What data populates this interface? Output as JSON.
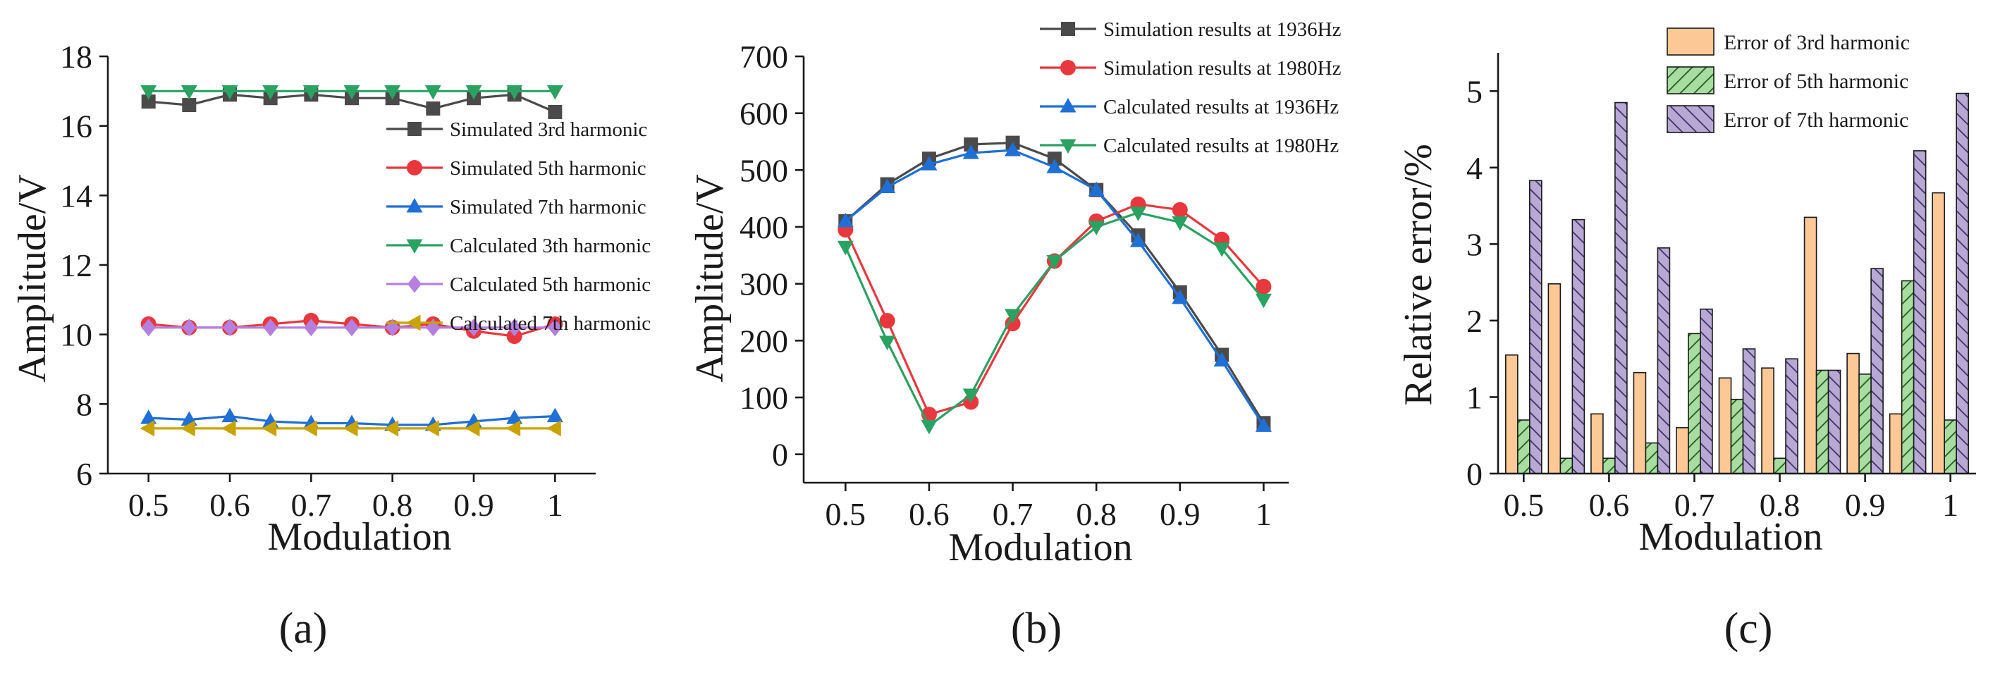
{
  "chart_data": [
    {
      "panel_label": "(a)",
      "type": "line",
      "xlabel": "Modulation",
      "ylabel": "Amplitude/V",
      "xlim": [
        0.45,
        1.05
      ],
      "ylim": [
        6,
        18
      ],
      "xticks": [
        0.5,
        0.6,
        0.7,
        0.8,
        0.9,
        1.0
      ],
      "xtick_labels": [
        "0.5",
        "0.6",
        "0.7",
        "0.8",
        "0.9",
        "1"
      ],
      "yticks": [
        6,
        8,
        10,
        12,
        14,
        16,
        18
      ],
      "ytick_labels": [
        "6",
        "8",
        "10",
        "12",
        "14",
        "16",
        "18"
      ],
      "x": [
        0.5,
        0.55,
        0.6,
        0.65,
        0.7,
        0.75,
        0.8,
        0.85,
        0.9,
        0.95,
        1.0
      ],
      "legend_position": "right",
      "series": [
        {
          "name": "Simulated 3rd harmonic",
          "color": "#4a4a4a",
          "marker": "square",
          "values": [
            16.7,
            16.6,
            16.9,
            16.8,
            16.9,
            16.8,
            16.8,
            16.5,
            16.8,
            16.9,
            16.4
          ]
        },
        {
          "name": "Simulated 5th harmonic",
          "color": "#e8383d",
          "marker": "circle",
          "values": [
            10.3,
            10.2,
            10.2,
            10.3,
            10.4,
            10.3,
            10.2,
            10.3,
            10.1,
            9.95,
            10.3
          ]
        },
        {
          "name": "Simulated 7th harmonic",
          "color": "#1f6fd6",
          "marker": "triangle-up",
          "values": [
            7.6,
            7.55,
            7.65,
            7.5,
            7.45,
            7.45,
            7.4,
            7.4,
            7.5,
            7.6,
            7.65
          ]
        },
        {
          "name": "Calculated 3th harmonic",
          "color": "#2aa262",
          "marker": "triangle-down",
          "values": [
            17.0,
            17.0,
            17.0,
            17.0,
            17.0,
            17.0,
            17.0,
            17.0,
            17.0,
            17.0,
            17.0
          ]
        },
        {
          "name": "Calculated 5th harmonic",
          "color": "#b57fe0",
          "marker": "diamond",
          "values": [
            10.2,
            10.2,
            10.2,
            10.2,
            10.2,
            10.2,
            10.2,
            10.2,
            10.2,
            10.2,
            10.2
          ]
        },
        {
          "name": "Calculated 7th harmonic",
          "color": "#c9a300",
          "marker": "triangle-left",
          "values": [
            7.3,
            7.3,
            7.3,
            7.3,
            7.3,
            7.3,
            7.3,
            7.3,
            7.3,
            7.3,
            7.3
          ]
        }
      ]
    },
    {
      "panel_label": "(b)",
      "type": "line",
      "xlabel": "Modulation",
      "ylabel": "Amplitude/V",
      "xlim": [
        0.45,
        1.03
      ],
      "ylim": [
        -50,
        700
      ],
      "xticks": [
        0.5,
        0.6,
        0.7,
        0.8,
        0.9,
        1.0
      ],
      "xtick_labels": [
        "0.5",
        "0.6",
        "0.7",
        "0.8",
        "0.9",
        "1"
      ],
      "yticks": [
        0,
        100,
        200,
        300,
        400,
        500,
        600,
        700
      ],
      "ytick_labels": [
        "0",
        "100",
        "200",
        "300",
        "400",
        "500",
        "600",
        "700"
      ],
      "x": [
        0.5,
        0.55,
        0.6,
        0.65,
        0.7,
        0.75,
        0.8,
        0.85,
        0.9,
        0.95,
        1.0
      ],
      "legend_position": "top-right",
      "series": [
        {
          "name": "Simulation results at 1936Hz",
          "color": "#4a4a4a",
          "marker": "square",
          "values": [
            410,
            475,
            520,
            545,
            548,
            520,
            465,
            385,
            285,
            175,
            55
          ]
        },
        {
          "name": "Simulation results at 1980Hz",
          "color": "#e8383d",
          "marker": "circle",
          "values": [
            395,
            235,
            70,
            92,
            230,
            340,
            410,
            440,
            430,
            378,
            295
          ]
        },
        {
          "name": "Calculated results at 1936Hz",
          "color": "#1f6fd6",
          "marker": "triangle-up",
          "values": [
            410,
            470,
            510,
            530,
            535,
            505,
            465,
            375,
            275,
            165,
            50
          ]
        },
        {
          "name": "Calculated results at 1980Hz",
          "color": "#2aa262",
          "marker": "triangle-down",
          "values": [
            365,
            198,
            50,
            105,
            245,
            340,
            400,
            425,
            408,
            362,
            272
          ]
        }
      ]
    },
    {
      "panel_label": "(c)",
      "type": "bar",
      "xlabel": "Modulation",
      "ylabel": "Relative error/%",
      "xlim": [
        0.47,
        1.03
      ],
      "ylim": [
        0,
        5.5
      ],
      "xticks": [
        0.5,
        0.6,
        0.7,
        0.8,
        0.9,
        1.0
      ],
      "xtick_labels": [
        "0.5",
        "0.6",
        "0.7",
        "0.8",
        "0.9",
        "1"
      ],
      "yticks": [
        0,
        1,
        2,
        3,
        4,
        5
      ],
      "ytick_labels": [
        "0",
        "1",
        "2",
        "3",
        "4",
        "5"
      ],
      "categories": [
        0.5,
        0.55,
        0.6,
        0.65,
        0.7,
        0.75,
        0.8,
        0.85,
        0.9,
        0.95,
        1.0
      ],
      "legend_position": "top-right",
      "series": [
        {
          "name": "Error of 3rd harmonic",
          "fill": "#fcc896",
          "hatch": "none",
          "values": [
            1.55,
            2.48,
            0.78,
            1.32,
            0.6,
            1.25,
            1.38,
            3.35,
            1.57,
            0.78,
            3.67
          ]
        },
        {
          "name": "Error of 5th harmonic",
          "fill": "#a8dca0",
          "hatch": "diagonal",
          "values": [
            0.7,
            0.2,
            0.2,
            0.4,
            1.83,
            0.97,
            0.2,
            1.35,
            1.3,
            2.52,
            0.7
          ]
        },
        {
          "name": "Error of 7th harmonic",
          "fill": "#b7a9d4",
          "hatch": "diagonal",
          "values": [
            3.83,
            3.32,
            4.85,
            2.95,
            2.15,
            1.63,
            1.5,
            1.35,
            2.68,
            4.22,
            4.97
          ]
        }
      ]
    }
  ]
}
